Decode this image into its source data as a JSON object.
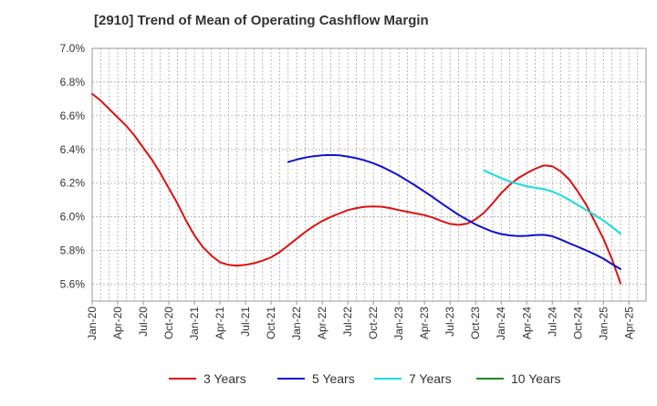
{
  "chart_data": {
    "type": "line",
    "title": "[2910]  Trend of Mean of Operating Cashflow Margin",
    "xlabel": "",
    "ylabel": "",
    "x_tick_labels": [
      "Jan-20",
      "Apr-20",
      "Jul-20",
      "Oct-20",
      "Jan-21",
      "Apr-21",
      "Jul-21",
      "Oct-21",
      "Jan-22",
      "Apr-22",
      "Jul-22",
      "Oct-22",
      "Jan-23",
      "Apr-23",
      "Jul-23",
      "Oct-23",
      "Jan-24",
      "Apr-24",
      "Jul-24",
      "Oct-24",
      "Jan-25",
      "Apr-25"
    ],
    "y_tick_labels": [
      "5.6%",
      "5.8%",
      "6.0%",
      "6.2%",
      "6.4%",
      "6.6%",
      "6.8%",
      "7.0%"
    ],
    "ylim": [
      5.5,
      7.0
    ],
    "y_unit": "%",
    "grid": true,
    "legend_position": "bottom",
    "series": [
      {
        "name": "3 Years",
        "color": "#dd1111",
        "points": [
          [
            "2020-01",
            6.73
          ],
          [
            "2020-02",
            6.69
          ],
          [
            "2020-03",
            6.64
          ],
          [
            "2020-04",
            6.59
          ],
          [
            "2020-05",
            6.54
          ],
          [
            "2020-06",
            6.48
          ],
          [
            "2020-07",
            6.41
          ],
          [
            "2020-08",
            6.34
          ],
          [
            "2020-09",
            6.26
          ],
          [
            "2020-10",
            6.17
          ],
          [
            "2020-11",
            6.08
          ],
          [
            "2020-12",
            5.98
          ],
          [
            "2021-01",
            5.89
          ],
          [
            "2021-02",
            5.82
          ],
          [
            "2021-03",
            5.77
          ],
          [
            "2021-04",
            5.73
          ],
          [
            "2021-05",
            5.715
          ],
          [
            "2021-06",
            5.71
          ],
          [
            "2021-07",
            5.715
          ],
          [
            "2021-08",
            5.725
          ],
          [
            "2021-09",
            5.74
          ],
          [
            "2021-10",
            5.76
          ],
          [
            "2021-11",
            5.79
          ],
          [
            "2021-12",
            5.83
          ],
          [
            "2022-01",
            5.87
          ],
          [
            "2022-02",
            5.91
          ],
          [
            "2022-03",
            5.945
          ],
          [
            "2022-04",
            5.975
          ],
          [
            "2022-05",
            6.0
          ],
          [
            "2022-06",
            6.02
          ],
          [
            "2022-07",
            6.04
          ],
          [
            "2022-08",
            6.052
          ],
          [
            "2022-09",
            6.06
          ],
          [
            "2022-10",
            6.062
          ],
          [
            "2022-11",
            6.06
          ],
          [
            "2022-12",
            6.052
          ],
          [
            "2023-01",
            6.04
          ],
          [
            "2023-02",
            6.03
          ],
          [
            "2023-03",
            6.02
          ],
          [
            "2023-04",
            6.01
          ],
          [
            "2023-05",
            5.995
          ],
          [
            "2023-06",
            5.975
          ],
          [
            "2023-07",
            5.958
          ],
          [
            "2023-08",
            5.952
          ],
          [
            "2023-09",
            5.96
          ],
          [
            "2023-10",
            5.985
          ],
          [
            "2023-11",
            6.025
          ],
          [
            "2023-12",
            6.08
          ],
          [
            "2024-01",
            6.14
          ],
          [
            "2024-02",
            6.19
          ],
          [
            "2024-03",
            6.23
          ],
          [
            "2024-04",
            6.26
          ],
          [
            "2024-05",
            6.285
          ],
          [
            "2024-06",
            6.305
          ],
          [
            "2024-07",
            6.3
          ],
          [
            "2024-08",
            6.27
          ],
          [
            "2024-09",
            6.22
          ],
          [
            "2024-10",
            6.15
          ],
          [
            "2024-11",
            6.07
          ],
          [
            "2024-12",
            5.97
          ],
          [
            "2025-01",
            5.87
          ],
          [
            "2025-02",
            5.75
          ],
          [
            "2025-03",
            5.605
          ]
        ]
      },
      {
        "name": "5 Years",
        "color": "#1111cc",
        "points": [
          [
            "2021-12",
            6.325
          ],
          [
            "2022-01",
            6.34
          ],
          [
            "2022-02",
            6.352
          ],
          [
            "2022-03",
            6.36
          ],
          [
            "2022-04",
            6.365
          ],
          [
            "2022-05",
            6.367
          ],
          [
            "2022-06",
            6.365
          ],
          [
            "2022-07",
            6.358
          ],
          [
            "2022-08",
            6.348
          ],
          [
            "2022-09",
            6.335
          ],
          [
            "2022-10",
            6.318
          ],
          [
            "2022-11",
            6.297
          ],
          [
            "2022-12",
            6.272
          ],
          [
            "2023-01",
            6.245
          ],
          [
            "2023-02",
            6.215
          ],
          [
            "2023-03",
            6.183
          ],
          [
            "2023-04",
            6.15
          ],
          [
            "2023-05",
            6.116
          ],
          [
            "2023-06",
            6.08
          ],
          [
            "2023-07",
            6.046
          ],
          [
            "2023-08",
            6.012
          ],
          [
            "2023-09",
            5.983
          ],
          [
            "2023-10",
            5.955
          ],
          [
            "2023-11",
            5.932
          ],
          [
            "2023-12",
            5.912
          ],
          [
            "2024-01",
            5.898
          ],
          [
            "2024-02",
            5.89
          ],
          [
            "2024-03",
            5.886
          ],
          [
            "2024-04",
            5.887
          ],
          [
            "2024-05",
            5.892
          ],
          [
            "2024-06",
            5.893
          ],
          [
            "2024-07",
            5.885
          ],
          [
            "2024-08",
            5.865
          ],
          [
            "2024-09",
            5.843
          ],
          [
            "2024-10",
            5.822
          ],
          [
            "2024-11",
            5.8
          ],
          [
            "2024-12",
            5.777
          ],
          [
            "2025-01",
            5.752
          ],
          [
            "2025-02",
            5.72
          ],
          [
            "2025-03",
            5.69
          ]
        ]
      },
      {
        "name": "7 Years",
        "color": "#11dddd",
        "points": [
          [
            "2023-11",
            6.275
          ],
          [
            "2023-12",
            6.252
          ],
          [
            "2024-01",
            6.23
          ],
          [
            "2024-02",
            6.21
          ],
          [
            "2024-03",
            6.195
          ],
          [
            "2024-04",
            6.182
          ],
          [
            "2024-05",
            6.172
          ],
          [
            "2024-06",
            6.165
          ],
          [
            "2024-07",
            6.15
          ],
          [
            "2024-08",
            6.128
          ],
          [
            "2024-09",
            6.1
          ],
          [
            "2024-10",
            6.07
          ],
          [
            "2024-11",
            6.04
          ],
          [
            "2024-12",
            6.01
          ],
          [
            "2025-01",
            5.978
          ],
          [
            "2025-02",
            5.94
          ],
          [
            "2025-03",
            5.9
          ]
        ]
      },
      {
        "name": "10 Years",
        "color": "#228822",
        "points": []
      }
    ]
  }
}
